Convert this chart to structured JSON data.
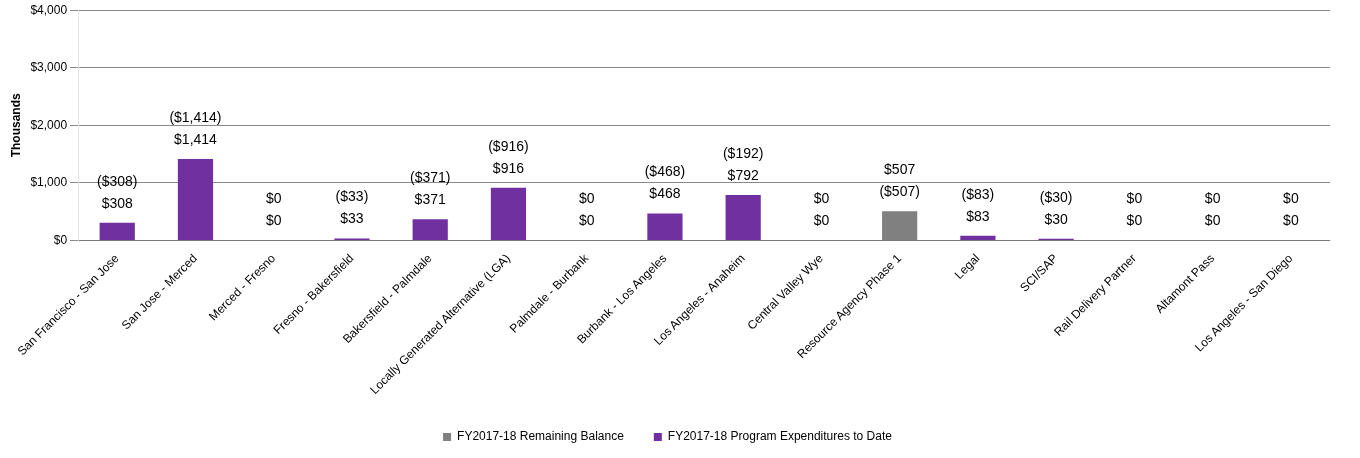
{
  "chart_data": {
    "type": "bar",
    "ylabel": "Thousands",
    "categories": [
      "San Francisco - San Jose",
      "San Jose - Merced",
      "Merced - Fresno",
      "Fresno - Bakersfield",
      "Bakersfield - Palmdale",
      "Locally Generated Alternative (LGA)",
      "Palmdale - Burbank",
      "Burbank - Los Angeles",
      "Los Angeles - Anaheim",
      "Central Valley Wye",
      "Resource Agency Phase 1",
      "Legal",
      "SCI/SAP",
      "Rail Delivery Partner",
      "Altamont Pass",
      "Los Angeles - San Diego"
    ],
    "series": [
      {
        "name": "FY2017-18 Program Expenditures to Date",
        "color": "#7030a0",
        "values": [
          308,
          1414,
          0,
          33,
          371,
          916,
          0,
          468,
          792,
          0,
          null,
          83,
          30,
          0,
          0,
          0
        ],
        "value_labels": [
          "$308",
          "$1,414",
          "$0",
          "$33",
          "$371",
          "$916",
          "$0",
          "$468",
          "$792",
          "$0",
          "($507)",
          "$83",
          "$30",
          "$0",
          "$0",
          "$0"
        ]
      },
      {
        "name": "FY2017-18 Remaining Balance",
        "color": "#808080",
        "values": [
          null,
          null,
          0,
          null,
          null,
          null,
          0,
          null,
          null,
          0,
          507,
          null,
          null,
          0,
          0,
          0
        ],
        "value_labels": [
          "($308)",
          "($1,414)",
          "$0",
          "($33)",
          "($371)",
          "($916)",
          "$0",
          "($468)",
          "($192)",
          "$0",
          "$507",
          "($83)",
          "($30)",
          "$0",
          "$0",
          "$0"
        ]
      }
    ],
    "ylim": [
      0,
      4000
    ],
    "yticks": [
      {
        "value": 0,
        "label": "$0"
      },
      {
        "value": 1000,
        "label": "$1,000"
      },
      {
        "value": 2000,
        "label": "$2,000"
      },
      {
        "value": 3000,
        "label": "$3,000"
      },
      {
        "value": 4000,
        "label": "$4,000"
      }
    ],
    "grid": "y",
    "legend": "bottom"
  }
}
